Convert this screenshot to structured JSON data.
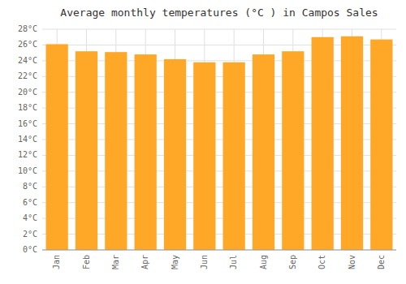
{
  "chart_data": {
    "type": "bar",
    "title": "Average monthly temperatures (°C ) in Campos Sales",
    "categories": [
      "Jan",
      "Feb",
      "Mar",
      "Apr",
      "May",
      "Jun",
      "Jul",
      "Aug",
      "Sep",
      "Oct",
      "Nov",
      "Dec"
    ],
    "values": [
      26.1,
      25.2,
      25.1,
      24.8,
      24.2,
      23.8,
      23.8,
      24.8,
      25.2,
      27.0,
      27.1,
      26.7
    ],
    "color": "#FFA726",
    "ylim": [
      0,
      28
    ],
    "yticks": [
      {
        "value": 0,
        "label": "0°C"
      },
      {
        "value": 2,
        "label": "2°C"
      },
      {
        "value": 4,
        "label": "4°C"
      },
      {
        "value": 6,
        "label": "6°C"
      },
      {
        "value": 8,
        "label": "8°C"
      },
      {
        "value": 10,
        "label": "10°C"
      },
      {
        "value": 12,
        "label": "12°C"
      },
      {
        "value": 14,
        "label": "14°C"
      },
      {
        "value": 16,
        "label": "16°C"
      },
      {
        "value": 18,
        "label": "18°C"
      },
      {
        "value": 20,
        "label": "20°C"
      },
      {
        "value": 22,
        "label": "22°C"
      },
      {
        "value": 24,
        "label": "24°C"
      },
      {
        "value": 26,
        "label": "26°C"
      },
      {
        "value": 28,
        "label": "28°C"
      }
    ],
    "grid": true
  }
}
